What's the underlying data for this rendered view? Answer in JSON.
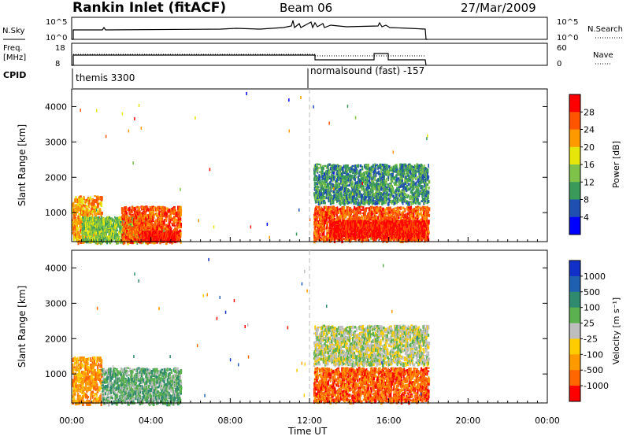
{
  "header": {
    "title": "Rankin Inlet (fitACF)",
    "beam": "Beam 06",
    "date": "27/Mar/2009"
  },
  "top_panels": {
    "nsky_label": "N.Sky",
    "nsearch_label": "N.Search",
    "nsky_ticks": [
      "10^5",
      "10^0"
    ],
    "freq_label": "Freq.",
    "freq_unit": "[MHz]",
    "freq_ticks": [
      "18",
      "8"
    ],
    "nave_ticks": [
      "60",
      "0"
    ],
    "nave_label": "Nave",
    "cpid_label": "CPID",
    "cpid_entries": [
      {
        "label": "themis 3300",
        "start": "00:00"
      },
      {
        "label": "normalsound (fast) -157",
        "start": "12:00"
      }
    ]
  },
  "colors": {
    "power_scale": [
      "#0000ff",
      "#1f4fb0",
      "#3a9a5a",
      "#7ec24a",
      "#e6e60a",
      "#ff9900",
      "#ff5500",
      "#ff0000"
    ],
    "velocity_scale": [
      "#1030c8",
      "#2060b0",
      "#2f8a6e",
      "#5bb050",
      "#bebebe",
      "#ffcc00",
      "#ff9900",
      "#ff6600",
      "#ff0000"
    ]
  },
  "chart_data": [
    {
      "type": "heatmap",
      "name": "power-panel",
      "xlabel": "Time UT",
      "ylabel": "Slant Range [km]",
      "x_ticks": [
        "00:00",
        "04:00",
        "08:00",
        "12:00",
        "16:00",
        "20:00",
        "00:00"
      ],
      "y_ticks": [
        1000,
        2000,
        3000,
        4000
      ],
      "ylim": [
        180,
        4500
      ],
      "colorbar_label": "Power [dB]",
      "colorbar_ticks": [
        "4",
        "8",
        "12",
        "16",
        "20",
        "24",
        "28"
      ],
      "colorbar_range": [
        0,
        30
      ],
      "regions": [
        {
          "t0": 0.0,
          "t1": 1.5,
          "r0": 200,
          "r1": 1500,
          "level": 5
        },
        {
          "t0": 0.5,
          "t1": 4.0,
          "r0": 200,
          "r1": 900,
          "level": 3
        },
        {
          "t0": 2.5,
          "t1": 5.5,
          "r0": 200,
          "r1": 1200,
          "level": 6
        },
        {
          "t0": 3.5,
          "t1": 5.3,
          "r0": 250,
          "r1": 500,
          "level": 7
        },
        {
          "t0": 12.2,
          "t1": 18.0,
          "r0": 250,
          "r1": 1200,
          "level": 6
        },
        {
          "t0": 13.0,
          "t1": 17.8,
          "r0": 350,
          "r1": 800,
          "level": 7
        },
        {
          "t0": 12.2,
          "t1": 18.0,
          "r0": 1300,
          "r1": 2400,
          "level": 2
        }
      ]
    },
    {
      "type": "heatmap",
      "name": "velocity-panel",
      "xlabel": "Time UT",
      "ylabel": "Slant Range [km]",
      "x_ticks": [
        "00:00",
        "04:00",
        "08:00",
        "12:00",
        "16:00",
        "20:00",
        "00:00"
      ],
      "y_ticks": [
        1000,
        2000,
        3000,
        4000
      ],
      "ylim": [
        180,
        4500
      ],
      "colorbar_label": "Velocity [m s⁻¹]",
      "colorbar_ticks": [
        "1000",
        "500",
        "100",
        "25",
        "-25",
        "-100",
        "-500",
        "-1000"
      ],
      "regions": [
        {
          "t0": 0.0,
          "t1": 1.5,
          "r0": 200,
          "r1": 1500,
          "level": 6
        },
        {
          "t0": 1.5,
          "t1": 5.5,
          "r0": 200,
          "r1": 1200,
          "level": 3
        },
        {
          "t0": 12.2,
          "t1": 18.0,
          "r0": 250,
          "r1": 1200,
          "level": 7
        },
        {
          "t0": 12.2,
          "t1": 18.0,
          "r0": 1300,
          "r1": 2400,
          "level": 4
        }
      ]
    }
  ]
}
